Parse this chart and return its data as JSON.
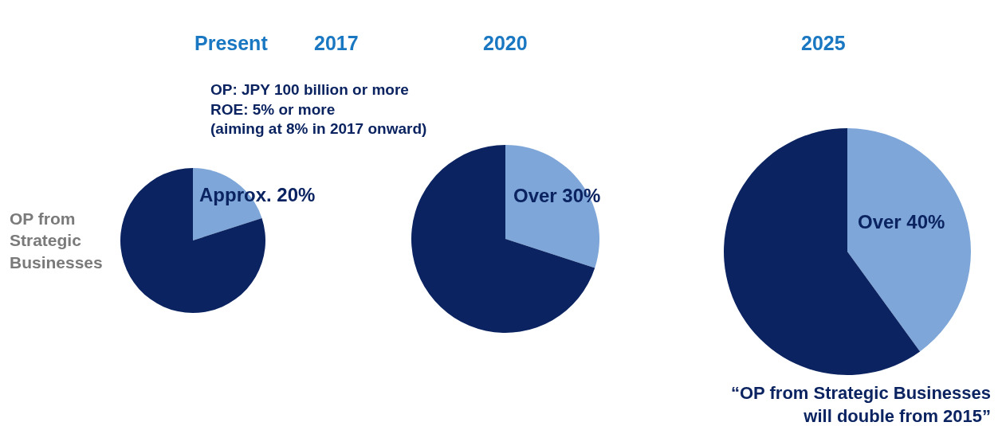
{
  "chart_data": [
    {
      "type": "pie",
      "title": "Present",
      "annotations": [
        "OP from Strategic Businesses"
      ],
      "categories": [
        "Approx. 20%",
        null
      ],
      "values": [
        20,
        80
      ],
      "colors": [
        "#7ea6d8",
        "#0b2461"
      ]
    },
    {
      "type": "other",
      "title": "2017",
      "annotations": [
        "OP: JPY 100 billion or more",
        "ROE: 5% or more",
        "(aiming at 8% in 2017 onward)"
      ]
    },
    {
      "type": "pie",
      "title": "2020",
      "categories": [
        "Over 30%",
        null
      ],
      "values": [
        30,
        70
      ],
      "colors": [
        "#7ea6d8",
        "#0b2461"
      ]
    },
    {
      "type": "pie",
      "title": "2025",
      "annotations": [
        "“OP from Strategic Businesses will double from 2015”"
      ],
      "categories": [
        "Over 40%",
        null
      ],
      "values": [
        40,
        60
      ],
      "colors": [
        "#7ea6d8",
        "#0b2461"
      ]
    }
  ]
}
